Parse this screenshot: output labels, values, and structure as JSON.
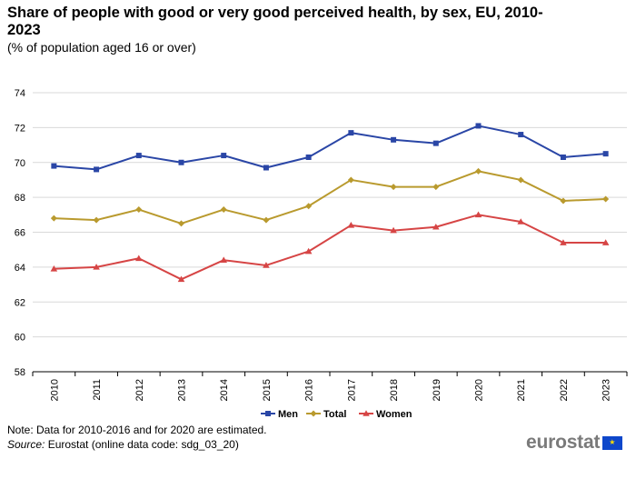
{
  "header": {
    "title": "Share of people with good or very good perceived health, by sex, EU, 2010-2023",
    "subtitle": "(% of population aged 16 or over)"
  },
  "footer": {
    "note": "Note: Data for 2010-2016 and for 2020 are estimated.",
    "source_label": "Source:",
    "source_text": "Eurostat (online data code: sdg_03_20)",
    "logo": "eurostat"
  },
  "colors": {
    "men": "#2a46a6",
    "total": "#b99a2e",
    "women": "#d64545",
    "grid": "#d9d9d9",
    "axis": "#000000"
  },
  "chart_data": {
    "type": "line",
    "title": "Share of people with good or very good perceived health, by sex, EU, 2010-2023",
    "xlabel": "",
    "ylabel": "",
    "ylim": [
      58,
      74
    ],
    "yticks": [
      58,
      60,
      62,
      64,
      66,
      68,
      70,
      72,
      74
    ],
    "grid": true,
    "legend_position": "bottom-center",
    "x": [
      "2010",
      "2011",
      "2012",
      "2013",
      "2014",
      "2015",
      "2016",
      "2017",
      "2018",
      "2019",
      "2020",
      "2021",
      "2022",
      "2023"
    ],
    "series": [
      {
        "name": "Men",
        "marker": "square",
        "color": "#2a46a6",
        "values": [
          69.8,
          69.6,
          70.4,
          70.0,
          70.4,
          69.7,
          70.3,
          71.7,
          71.3,
          71.1,
          72.1,
          71.6,
          70.3,
          70.5
        ]
      },
      {
        "name": "Total",
        "marker": "diamond",
        "color": "#b99a2e",
        "values": [
          66.8,
          66.7,
          67.3,
          66.5,
          67.3,
          66.7,
          67.5,
          69.0,
          68.6,
          68.6,
          69.5,
          69.0,
          67.8,
          67.9
        ]
      },
      {
        "name": "Women",
        "marker": "triangle",
        "color": "#d64545",
        "values": [
          63.9,
          64.0,
          64.5,
          63.3,
          64.4,
          64.1,
          64.9,
          66.4,
          66.1,
          66.3,
          67.0,
          66.6,
          65.4,
          65.4
        ]
      }
    ]
  }
}
